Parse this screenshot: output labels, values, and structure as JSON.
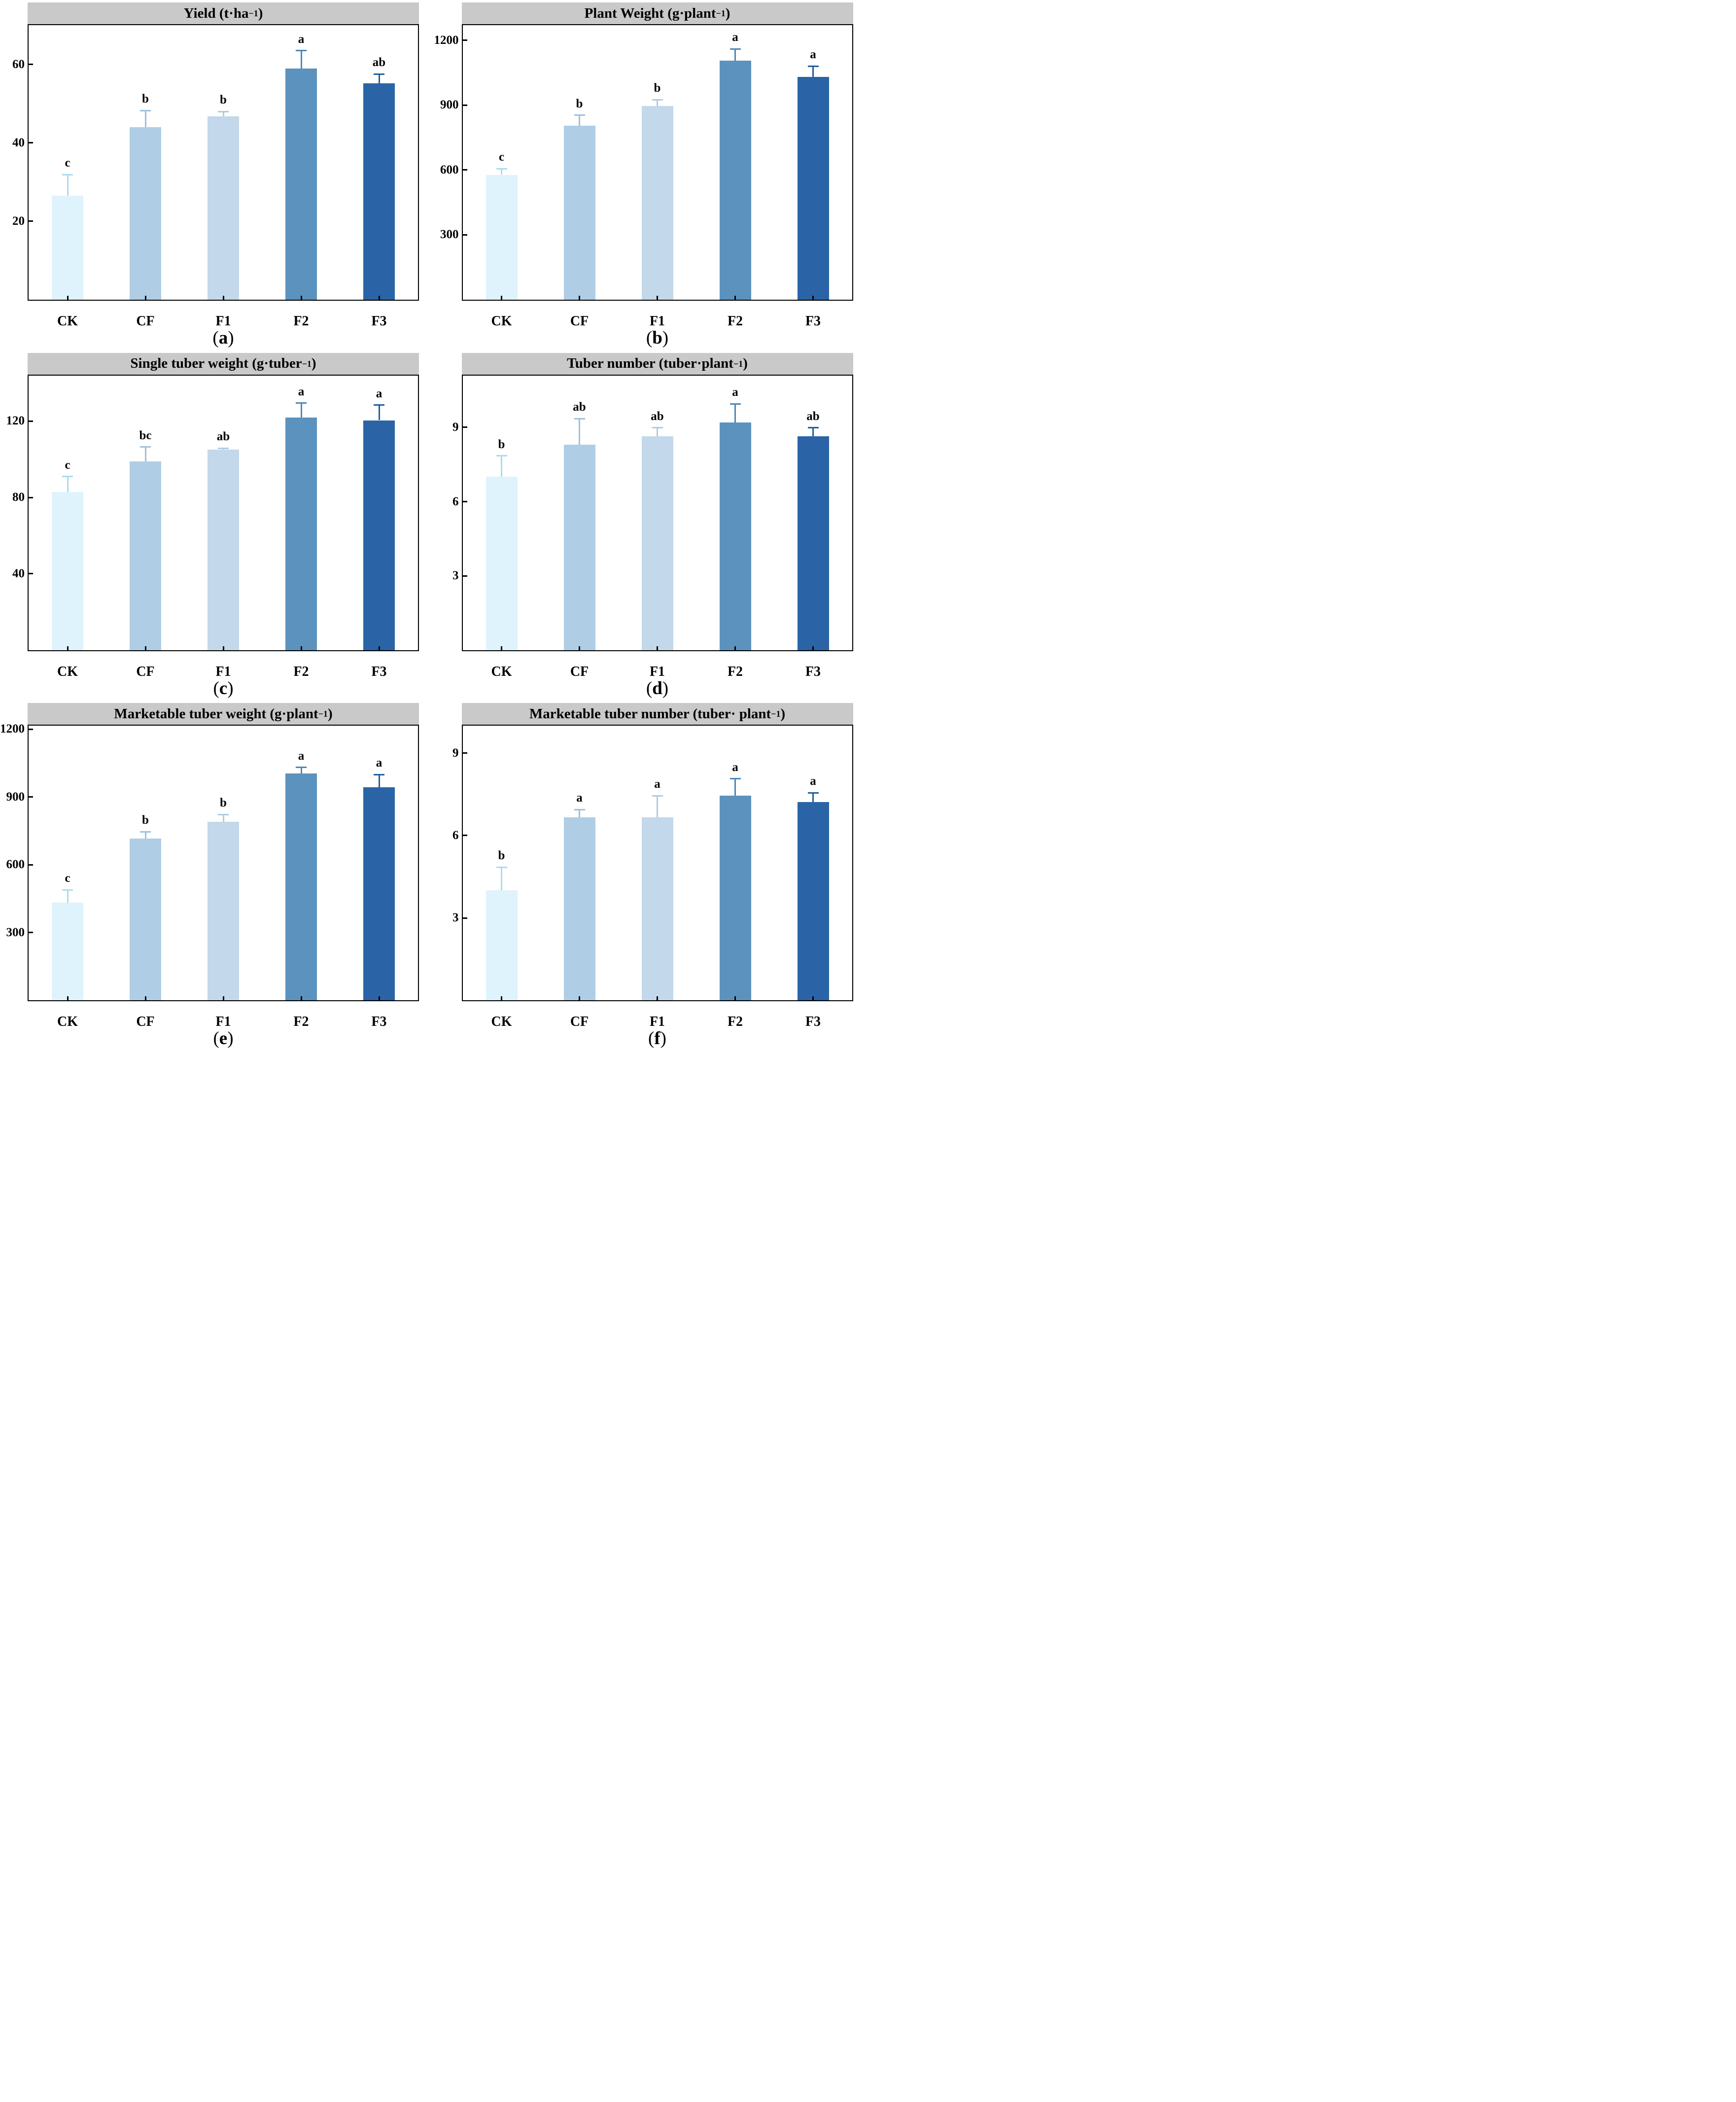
{
  "figure": {
    "band_bg": "#c9c9c9",
    "categories": [
      "CK",
      "CF",
      "F1",
      "F2",
      "F3"
    ],
    "bar_colors": [
      "#def3fb",
      "#afcde5",
      "#c3d8ea",
      "#5c92be",
      "#2a64a6"
    ],
    "error_colors": [
      "#a9dcee",
      "#9cc0dd",
      "#b0cbe2",
      "#4d87b6",
      "#1f5d9e"
    ]
  },
  "chart_data": [
    {
      "id": "a",
      "type": "bar",
      "title": "Yield (t·ha⁻¹)",
      "title_main": "Yield (t·ha",
      "title_sup": "−1",
      "title_end": ")",
      "categories": [
        "CK",
        "CF",
        "F1",
        "F2",
        "F3"
      ],
      "values": [
        26.5,
        44,
        46.8,
        59,
        55.2
      ],
      "errors": [
        5.4,
        4.2,
        1.2,
        4.5,
        2.3
      ],
      "sig_letters": [
        "c",
        "b",
        "b",
        "a",
        "ab"
      ],
      "yticks": [
        20,
        40,
        60
      ],
      "ylim": [
        0,
        70
      ],
      "panel_label_open": "(",
      "panel_letter": "a",
      "panel_label_close": ")"
    },
    {
      "id": "b",
      "type": "bar",
      "title": "Plant Weight (g·plant⁻¹)",
      "title_main": "Plant Weight (g·plant",
      "title_sup": "−1",
      "title_end": ")",
      "categories": [
        "CK",
        "CF",
        "F1",
        "F2",
        "F3"
      ],
      "values": [
        578,
        805,
        895,
        1105,
        1030
      ],
      "errors": [
        28,
        48,
        30,
        55,
        50
      ],
      "sig_letters": [
        "c",
        "b",
        "b",
        "a",
        "a"
      ],
      "yticks": [
        300,
        600,
        900,
        1200
      ],
      "ylim": [
        0,
        1270
      ],
      "panel_label_open": "(",
      "panel_letter": "b",
      "panel_label_close": ")"
    },
    {
      "id": "c",
      "type": "bar",
      "title": "Single tuber weight (g·tuber⁻¹)",
      "title_main": "Single tuber weight (g·tuber",
      "title_sup": "−1",
      "title_end": ")",
      "categories": [
        "CK",
        "CF",
        "F1",
        "F2",
        "F3"
      ],
      "values": [
        83,
        99,
        105,
        122,
        120.5
      ],
      "errors": [
        8,
        7.5,
        0.8,
        7.5,
        8
      ],
      "sig_letters": [
        "c",
        "bc",
        "ab",
        "a",
        "a"
      ],
      "yticks": [
        40,
        80,
        120
      ],
      "ylim": [
        0,
        144
      ],
      "panel_label_open": "(",
      "panel_letter": "c",
      "panel_label_close": ")"
    },
    {
      "id": "d",
      "type": "bar",
      "title": "Tuber number (tuber·plant⁻¹)",
      "title_main": "Tuber number (tuber·plant",
      "title_sup": "−1",
      "title_end": ")",
      "categories": [
        "CK",
        "CF",
        "F1",
        "F2",
        "F3"
      ],
      "values": [
        7.0,
        8.3,
        8.65,
        9.2,
        8.65
      ],
      "errors": [
        0.85,
        1.05,
        0.33,
        0.75,
        0.33
      ],
      "sig_letters": [
        "b",
        "ab",
        "ab",
        "a",
        "ab"
      ],
      "yticks": [
        3,
        6,
        9
      ],
      "ylim": [
        0,
        11.1
      ],
      "panel_label_open": "(",
      "panel_letter": "d",
      "panel_label_close": ")"
    },
    {
      "id": "e",
      "type": "bar",
      "title": "Marketable tuber weight (g·plant⁻¹)",
      "title_main": "Marketable tuber weight (g·plant",
      "title_sup": "−1",
      "title_end": ")",
      "categories": [
        "CK",
        "CF",
        "F1",
        "F2",
        "F3"
      ],
      "values": [
        432,
        716,
        790,
        1003,
        942
      ],
      "errors": [
        57,
        30,
        32,
        27,
        57
      ],
      "sig_letters": [
        "c",
        "b",
        "b",
        "a",
        "a"
      ],
      "yticks": [
        300,
        600,
        900,
        1200
      ],
      "ylim": [
        0,
        1215
      ],
      "panel_label_open": "(",
      "panel_letter": "e",
      "panel_label_close": ")"
    },
    {
      "id": "f",
      "type": "bar",
      "title": "Marketable tuber number (tuber· plant⁻¹)",
      "title_main": "Marketable tuber number (tuber· plant",
      "title_sup": "−1",
      "title_end": ")",
      "categories": [
        "CK",
        "CF",
        "F1",
        "F2",
        "F3"
      ],
      "values": [
        4.0,
        6.67,
        6.67,
        7.45,
        7.22
      ],
      "errors": [
        0.85,
        0.28,
        0.78,
        0.62,
        0.34
      ],
      "sig_letters": [
        "b",
        "a",
        "a",
        "a",
        "a"
      ],
      "yticks": [
        3,
        6,
        9
      ],
      "ylim": [
        0,
        10.0
      ],
      "panel_label_open": "(",
      "panel_letter": "f",
      "panel_label_close": ")"
    }
  ]
}
